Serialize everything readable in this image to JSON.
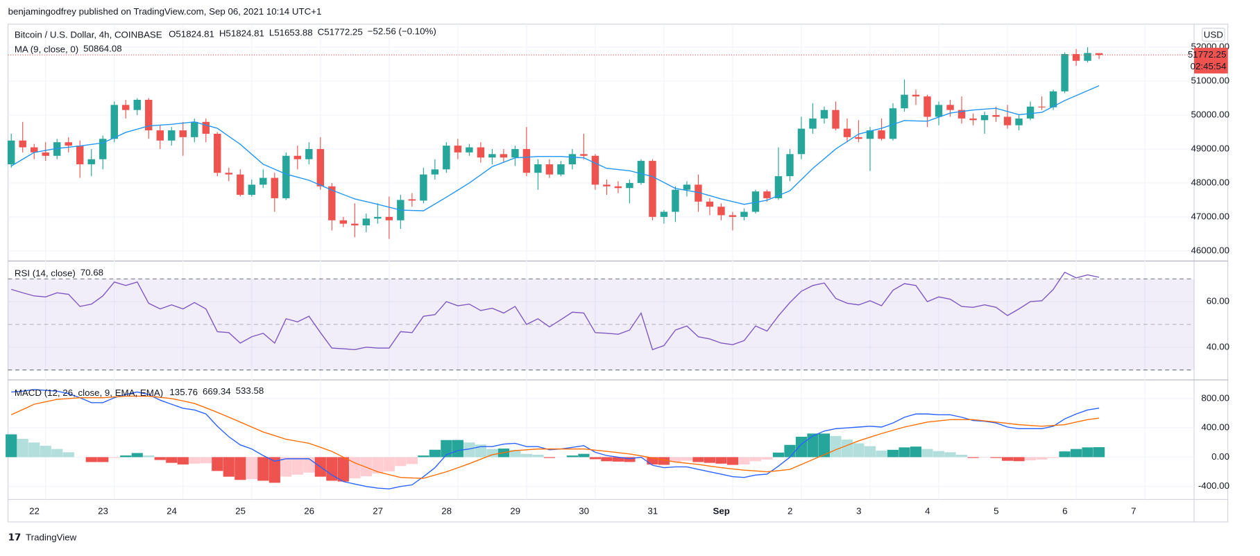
{
  "header": {
    "published": "benjamingodfrey published on TradingView.com, Sep 06, 2021 10:14 UTC+1",
    "logo": "TradingView"
  },
  "chart_data": [
    {
      "type": "candlestick",
      "title": "Bitcoin / U.S. Dollar, 4h, COINBASE",
      "legend": {
        "open": "O51824.81",
        "high": "H51824.81",
        "low": "L51653.88",
        "close": "C51772.25",
        "change": "−52.56 (−0.10%)"
      },
      "currency": "USD",
      "last_price_label": "51772.25",
      "countdown": "02:45:54",
      "up_color": "#26a69a",
      "down_color": "#ef5350",
      "open": [
        48550,
        49250,
        49050,
        48900,
        48800,
        49200,
        49100,
        48550,
        48700,
        49300,
        50300,
        50150,
        50450,
        49550,
        49250,
        49550,
        49350,
        49800,
        49450,
        48300,
        48250,
        47650,
        47950,
        48150,
        47550,
        48800,
        48700,
        49000,
        47900,
        46900,
        46800,
        46750,
        46950,
        47000,
        46900,
        47520,
        47480,
        48250,
        48400,
        49100,
        48900,
        49050,
        48750,
        48850,
        48750,
        49000,
        48300,
        48550,
        48250,
        48550,
        48850,
        48800,
        47950,
        47900,
        47850,
        48000,
        48650,
        47000,
        47150,
        47800,
        47950,
        47450,
        47300,
        47050,
        47000,
        47150,
        47750,
        47550,
        48200,
        48850,
        49600,
        49900,
        50150,
        49600,
        49350,
        49300,
        49550,
        49300,
        50200,
        50600,
        50550,
        49950,
        50300,
        50150,
        49900,
        49850,
        50000,
        49950,
        49700,
        49900,
        50250,
        50230,
        50700,
        51800,
        51600,
        51824.81
      ],
      "high": [
        49450,
        49800,
        49150,
        49200,
        49300,
        49350,
        49250,
        49000,
        49400,
        50400,
        50450,
        50500,
        50500,
        49700,
        49650,
        49800,
        49900,
        49900,
        49500,
        48450,
        48400,
        48100,
        48400,
        48300,
        48900,
        49100,
        49200,
        49350,
        48000,
        47000,
        47400,
        47100,
        47400,
        47600,
        47650,
        47700,
        48450,
        48700,
        49200,
        49300,
        49150,
        49200,
        49000,
        49000,
        49100,
        49650,
        48700,
        48700,
        48650,
        49000,
        49450,
        48850,
        48100,
        48050,
        48100,
        48700,
        48700,
        47200,
        47900,
        48050,
        48250,
        47550,
        47400,
        47150,
        47250,
        47800,
        47800,
        49050,
        49000,
        49950,
        50350,
        50250,
        50400,
        49900,
        49850,
        49650,
        49900,
        50350,
        51050,
        50750,
        50600,
        50400,
        50450,
        50550,
        50050,
        50100,
        50250,
        50300,
        50000,
        50400,
        50550,
        50750,
        51850,
        51950,
        52000,
        51824.81
      ],
      "low": [
        48450,
        48900,
        48700,
        48650,
        48700,
        48900,
        48150,
        48200,
        48400,
        49200,
        49900,
        50000,
        49300,
        49000,
        49100,
        48800,
        49200,
        49200,
        48200,
        48050,
        47600,
        47600,
        47850,
        47150,
        47500,
        48400,
        48550,
        47800,
        46600,
        46700,
        46400,
        46550,
        46800,
        46350,
        46650,
        47300,
        47400,
        48100,
        48300,
        48700,
        48800,
        48600,
        48550,
        48600,
        48500,
        48200,
        47800,
        48150,
        48200,
        48400,
        48700,
        47800,
        47650,
        47700,
        47400,
        47950,
        46900,
        46800,
        46850,
        47600,
        47150,
        47050,
        46900,
        46600,
        46900,
        47100,
        47450,
        47500,
        48050,
        48700,
        49450,
        49750,
        49550,
        49200,
        49200,
        48350,
        49250,
        49250,
        50100,
        50300,
        49650,
        49700,
        49950,
        49750,
        49700,
        49450,
        49800,
        49600,
        49550,
        49850,
        50150,
        50150,
        50650,
        51450,
        51550,
        51653.88
      ],
      "close": [
        49250,
        49050,
        48900,
        48800,
        49200,
        49100,
        48550,
        48700,
        49300,
        50300,
        50150,
        50450,
        49550,
        49250,
        49550,
        49350,
        49800,
        49450,
        48300,
        48250,
        47650,
        47950,
        48150,
        47550,
        48800,
        48700,
        49000,
        47900,
        46900,
        46800,
        46750,
        46950,
        47000,
        46900,
        47500,
        47480,
        48250,
        48400,
        49100,
        48900,
        49050,
        48750,
        48850,
        48750,
        49000,
        48300,
        48550,
        48250,
        48550,
        48850,
        48800,
        47950,
        47900,
        47850,
        48000,
        48650,
        47000,
        47150,
        47800,
        47950,
        47450,
        47300,
        47050,
        47000,
        47150,
        47750,
        47550,
        48200,
        48850,
        49600,
        49900,
        50150,
        49600,
        49350,
        49300,
        49550,
        49300,
        50200,
        50600,
        50550,
        49950,
        50300,
        50150,
        49900,
        49850,
        50000,
        49950,
        49700,
        49900,
        50250,
        50230,
        50700,
        51800,
        51600,
        51830,
        51772.25
      ],
      "series": [
        {
          "name": "MA (9, close, 0)",
          "color": "#2196f3",
          "value_label": "50864.08",
          "values": [
            48500,
            48700,
            48900,
            48960,
            49020,
            49055,
            49090,
            49135,
            49180,
            49335,
            49490,
            49585,
            49680,
            49705,
            49730,
            49765,
            49800,
            49705,
            49610,
            49375,
            49140,
            48845,
            48550,
            48405,
            48260,
            48170,
            48080,
            47935,
            47790,
            47660,
            47530,
            47450,
            47370,
            47285,
            47200,
            47190,
            47180,
            47380,
            47580,
            47790,
            48000,
            48240,
            48480,
            48610,
            48740,
            48760,
            48780,
            48780,
            48780,
            48760,
            48740,
            48585,
            48430,
            48395,
            48360,
            48275,
            48190,
            48015,
            47840,
            47780,
            47720,
            47625,
            47530,
            47450,
            47370,
            47430,
            47490,
            47630,
            47770,
            48100,
            48430,
            48715,
            49000,
            49220,
            49440,
            49525,
            49610,
            49725,
            49840,
            49830,
            49820,
            49940,
            50060,
            50105,
            50150,
            50175,
            50200,
            50105,
            50010,
            50045,
            50080,
            50255,
            50430,
            50575,
            50720,
            50864.08
          ]
        }
      ],
      "ylim": [
        45700,
        52680
      ],
      "yticks": [
        {
          "value": 46000,
          "label": "46000.00"
        },
        {
          "value": 47000,
          "label": "47000.00"
        },
        {
          "value": 48000,
          "label": "48000.00"
        },
        {
          "value": 49000,
          "label": "49000.00"
        },
        {
          "value": 50000,
          "label": "50000.00"
        },
        {
          "value": 51000,
          "label": "51000.00"
        },
        {
          "value": 52000,
          "label": "52000.00"
        }
      ],
      "xticks": [
        {
          "value": 3,
          "label": "22"
        },
        {
          "value": 9,
          "label": "23"
        },
        {
          "value": 15,
          "label": "24"
        },
        {
          "value": 21,
          "label": "25"
        },
        {
          "value": 27,
          "label": "26"
        },
        {
          "value": 33,
          "label": "27"
        },
        {
          "value": 39,
          "label": "28"
        },
        {
          "value": 45,
          "label": "29"
        },
        {
          "value": 51,
          "label": "30"
        },
        {
          "value": 57,
          "label": "31"
        },
        {
          "value": 63,
          "label": "Sep"
        },
        {
          "value": 69,
          "label": "2"
        },
        {
          "value": 75,
          "label": "3"
        },
        {
          "value": 81,
          "label": "4"
        },
        {
          "value": 87,
          "label": "5"
        },
        {
          "value": 93,
          "label": "6"
        },
        {
          "value": 99,
          "label": "7"
        }
      ],
      "grid": true
    },
    {
      "type": "line",
      "title": "RSI (14, close)",
      "series": [
        {
          "color": "#7e57c2",
          "value_label": "70.68",
          "values": [
            65.4,
            63.9,
            62.5,
            62.1,
            63.9,
            63.2,
            57.9,
            58.9,
            62.5,
            68.6,
            67.1,
            68.6,
            59.3,
            56.8,
            58.6,
            56.8,
            59.6,
            56.8,
            46.8,
            46.4,
            41.8,
            44.6,
            46.1,
            41.8,
            52.5,
            51.1,
            53.6,
            46.4,
            39.6,
            39.3,
            38.9,
            40,
            39.6,
            39.6,
            46.8,
            46.4,
            53.6,
            54.3,
            60,
            58.2,
            58.9,
            56.1,
            57.1,
            55,
            57.9,
            50,
            52.5,
            48.9,
            52.1,
            55.4,
            55,
            46.4,
            46.1,
            45.7,
            47.5,
            55,
            38.9,
            40.7,
            47.5,
            49.3,
            44.6,
            43.6,
            41.8,
            41.1,
            42.9,
            49.3,
            47.1,
            53.8,
            59.6,
            64.6,
            67.1,
            68.2,
            61.4,
            59.3,
            58.6,
            60.4,
            58.2,
            65,
            67.9,
            67.1,
            60,
            62.1,
            61.1,
            57.9,
            57.5,
            58.6,
            57.5,
            53.9,
            56.8,
            60,
            60.4,
            65.4,
            72.9,
            70.4,
            71.8,
            70.68
          ]
        }
      ],
      "band": [
        30,
        70
      ],
      "midline": 50,
      "ylim": [
        26,
        77.5
      ],
      "yticks": [
        {
          "value": 40,
          "label": "40.00"
        },
        {
          "value": 60,
          "label": "60.00"
        }
      ]
    },
    {
      "type": "macd",
      "title": "MACD (12, 26, close, 9, EMA, EMA)",
      "series": [
        {
          "kind": "histogram",
          "color": "#26a69a",
          "value_label": "135.76",
          "values": [
            311,
            250,
            200,
            155,
            111,
            67,
            0,
            -67,
            -67,
            -11,
            23,
            56,
            23,
            -39,
            -78,
            -100,
            -89,
            -83,
            -189,
            -267,
            -311,
            -300,
            -322,
            -350,
            -266,
            -239,
            -211,
            -267,
            -322,
            -333,
            -289,
            -261,
            -222,
            -194,
            -122,
            -94,
            22,
            101,
            233,
            234,
            200,
            172,
            111,
            117,
            100,
            44,
            33,
            -11,
            0,
            22,
            45,
            -28,
            -56,
            -61,
            -66,
            -17,
            -100,
            -105,
            -66,
            -49,
            -67,
            -78,
            -89,
            -106,
            -100,
            -55,
            -33,
            62,
            167,
            278,
            322,
            322,
            289,
            239,
            189,
            150,
            89,
            100,
            133,
            144,
            111,
            83,
            67,
            33,
            -11,
            -6,
            -11,
            -50,
            -55,
            -44,
            -33,
            -11,
            78,
            111,
            133,
            135.76
          ]
        },
        {
          "kind": "line",
          "color": "#2962ff",
          "value_label": "669.34",
          "values": [
            889,
            900,
            922,
            911,
            900,
            867,
            811,
            744,
            744,
            811,
            856,
            889,
            856,
            778,
            722,
            667,
            644,
            589,
            422,
            278,
            167,
            111,
            22,
            -56,
            -22,
            -22,
            -22,
            -133,
            -244,
            -333,
            -367,
            -400,
            -422,
            -433,
            -400,
            -378,
            -267,
            -144,
            33,
            89,
            111,
            144,
            144,
            178,
            189,
            144,
            144,
            100,
            111,
            133,
            156,
            67,
            22,
            0,
            -22,
            0,
            -111,
            -144,
            -133,
            -133,
            -167,
            -200,
            -233,
            -267,
            -278,
            -244,
            -233,
            -122,
            0,
            178,
            289,
            356,
            389,
            400,
            411,
            422,
            411,
            467,
            544,
            589,
            589,
            578,
            578,
            544,
            500,
            489,
            467,
            411,
            389,
            389,
            389,
            422,
            522,
            589,
            644,
            669.34
          ]
        },
        {
          "kind": "line",
          "color": "#ff6d00",
          "value_label": "533.58",
          "values": [
            578,
            650,
            722,
            756,
            789,
            800,
            811,
            811,
            811,
            822,
            833,
            833,
            833,
            817,
            800,
            767,
            733,
            672,
            611,
            545,
            478,
            411,
            344,
            294,
            244,
            217,
            189,
            134,
            78,
            0,
            -78,
            -139,
            -200,
            -239,
            -278,
            -284,
            -289,
            -245,
            -200,
            -145,
            -89,
            -28,
            33,
            61,
            89,
            100,
            111,
            111,
            111,
            111,
            111,
            95,
            78,
            61,
            44,
            17,
            -11,
            -39,
            -67,
            -84,
            -100,
            -122,
            -144,
            -161,
            -178,
            -189,
            -200,
            -184,
            -167,
            -100,
            -33,
            34,
            100,
            161,
            222,
            272,
            322,
            367,
            411,
            445,
            478,
            495,
            511,
            511,
            511,
            495,
            478,
            461,
            444,
            433,
            422,
            433,
            444,
            478,
            511,
            533.58
          ]
        }
      ],
      "ylim": [
        -556,
        1044
      ],
      "yticks": [
        {
          "value": -400,
          "label": "-400.00"
        },
        {
          "value": 0,
          "label": "0.00"
        },
        {
          "value": 400,
          "label": "400.00"
        },
        {
          "value": 800,
          "label": "800.00"
        }
      ]
    }
  ]
}
